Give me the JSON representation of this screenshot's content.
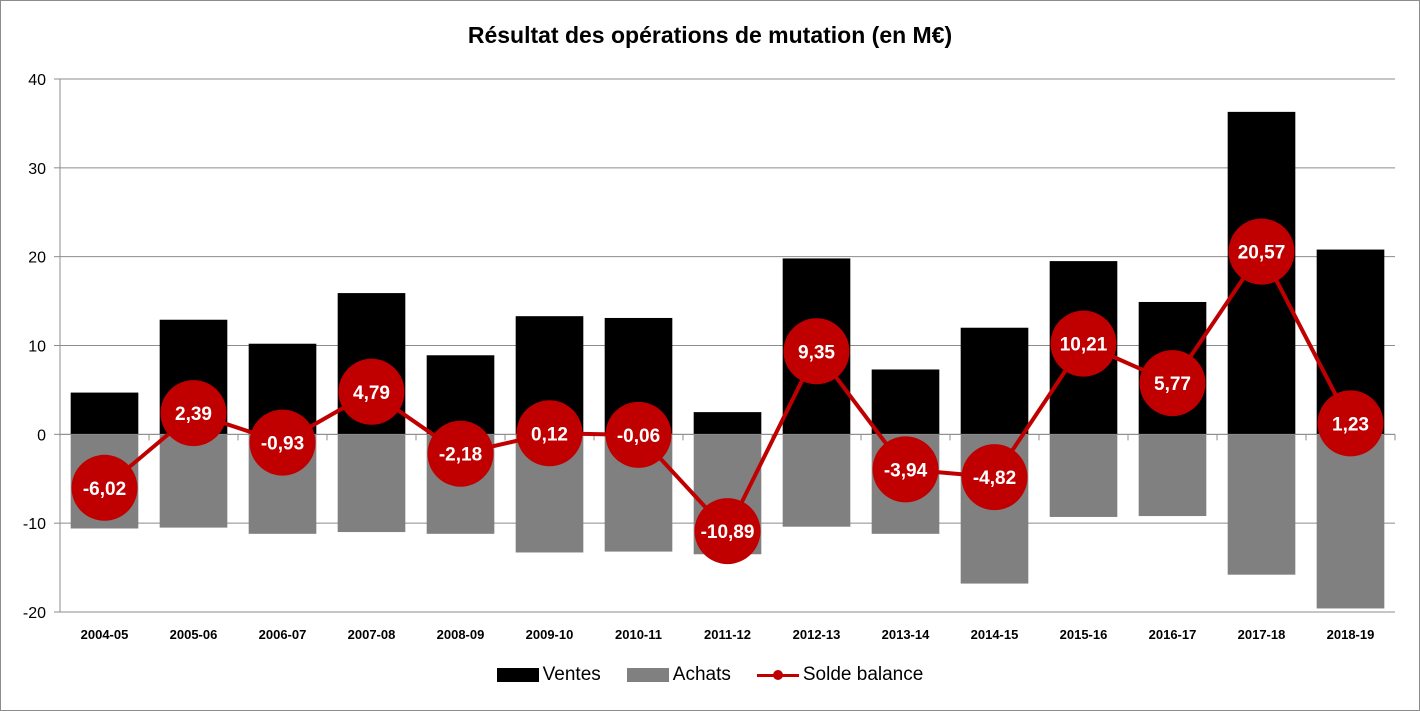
{
  "chart_data": {
    "type": "bar",
    "title": "Résultat des opérations de mutation (en M€)",
    "categories": [
      "2004-05",
      "2005-06",
      "2006-07",
      "2007-08",
      "2008-09",
      "2009-10",
      "2010-11",
      "2011-12",
      "2012-13",
      "2013-14",
      "2014-15",
      "2015-16",
      "2016-17",
      "2017-18",
      "2018-19"
    ],
    "series": [
      {
        "name": "Ventes",
        "type": "bar",
        "color": "#000000",
        "values": [
          4.7,
          12.9,
          10.2,
          15.9,
          8.9,
          13.3,
          13.1,
          2.5,
          19.8,
          7.3,
          12.0,
          19.5,
          14.9,
          36.3,
          20.8
        ]
      },
      {
        "name": "Achats",
        "type": "bar",
        "color": "#808080",
        "values": [
          -10.6,
          -10.5,
          -11.2,
          -11.0,
          -11.2,
          -13.3,
          -13.2,
          -13.5,
          -10.4,
          -11.2,
          -16.8,
          -9.3,
          -9.2,
          -15.8,
          -19.6
        ]
      },
      {
        "name": "Solde balance",
        "type": "line",
        "color": "#c00000",
        "values": [
          -6.02,
          2.39,
          -0.93,
          4.79,
          -2.18,
          0.12,
          -0.06,
          -10.89,
          9.35,
          -3.94,
          -4.82,
          10.21,
          5.77,
          20.57,
          1.23
        ],
        "labels": [
          "-6,02",
          "2,39",
          "-0,93",
          "4,79",
          "-2,18",
          "0,12",
          "-0,06",
          "-10,89",
          "9,35",
          "-3,94",
          "-4,82",
          "10,21",
          "5,77",
          "20,57",
          "1,23"
        ]
      }
    ],
    "ylim": [
      -20,
      40
    ],
    "yticks": [
      -20,
      -10,
      0,
      10,
      20,
      30,
      40
    ],
    "ytick_labels": [
      "-20",
      "-10",
      "0",
      "10",
      "20",
      "30",
      "40"
    ],
    "grid": true,
    "legend_position": "bottom"
  }
}
